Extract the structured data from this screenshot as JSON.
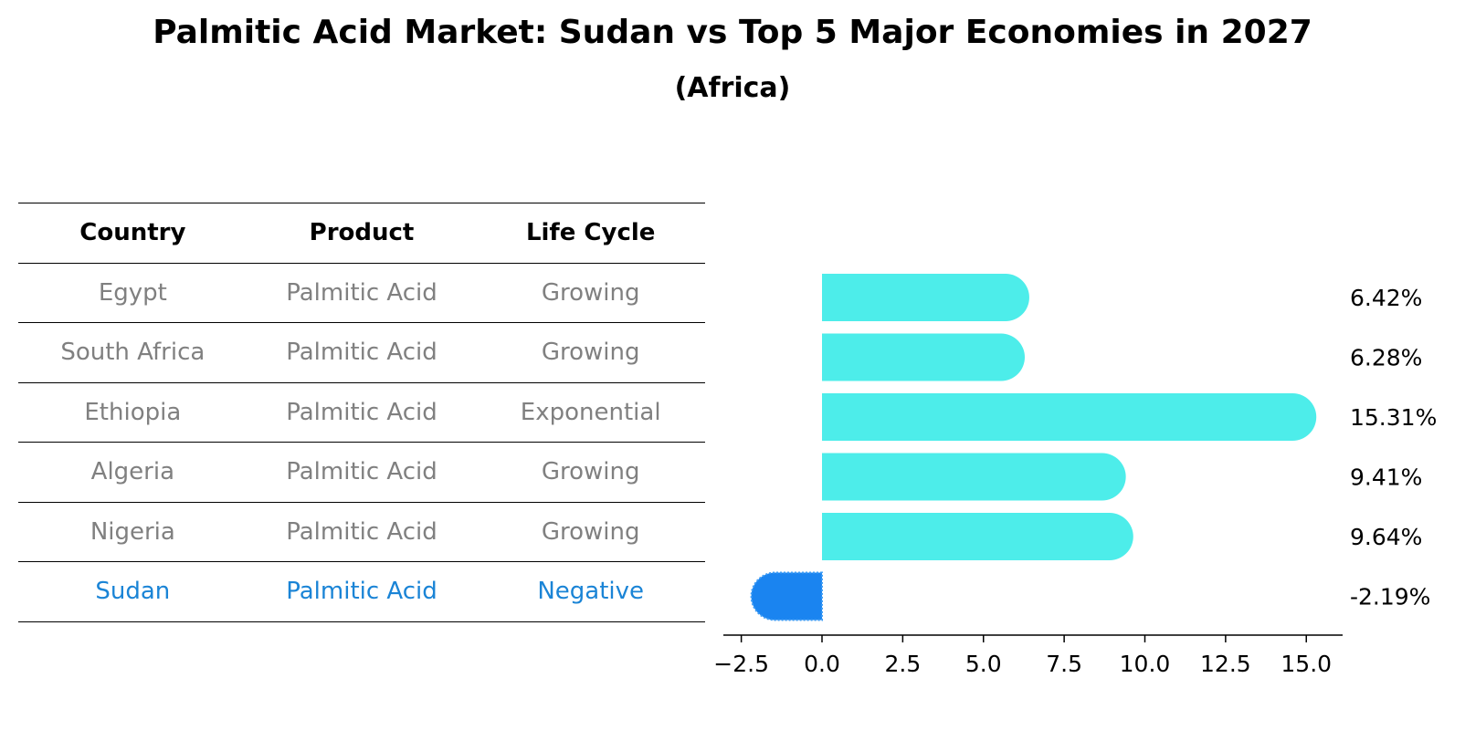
{
  "title": "Palmitic Acid Market: Sudan vs Top 5 Major Economies in 2027",
  "subtitle": "(Africa)",
  "table": {
    "headers": [
      "Country",
      "Product",
      "Life Cycle"
    ],
    "rows": [
      {
        "country": "Egypt",
        "product": "Palmitic Acid",
        "life_cycle": "Growing"
      },
      {
        "country": "South Africa",
        "product": "Palmitic Acid",
        "life_cycle": "Growing"
      },
      {
        "country": "Ethiopia",
        "product": "Palmitic Acid",
        "life_cycle": "Exponential"
      },
      {
        "country": "Algeria",
        "product": "Palmitic Acid",
        "life_cycle": "Growing"
      },
      {
        "country": "Nigeria",
        "product": "Palmitic Acid",
        "life_cycle": "Growing"
      },
      {
        "country": "Sudan",
        "product": "Palmitic Acid",
        "life_cycle": "Negative"
      }
    ]
  },
  "colors": {
    "positive_bar": "#4dedea",
    "negative_bar": "#1a84f0",
    "highlight_text": "#1a84d6",
    "muted_text": "#808080"
  },
  "chart_data": {
    "type": "bar",
    "orientation": "horizontal",
    "categories": [
      "Egypt",
      "South Africa",
      "Ethiopia",
      "Algeria",
      "Nigeria",
      "Sudan"
    ],
    "values": [
      6.42,
      6.28,
      15.31,
      9.41,
      9.64,
      -2.19
    ],
    "value_labels": [
      "6.42%",
      "6.28%",
      "15.31%",
      "9.41%",
      "9.64%",
      "-2.19%"
    ],
    "xlim": [
      -3.1,
      16.2
    ],
    "xticks": [
      -2.5,
      0.0,
      2.5,
      5.0,
      7.5,
      10.0,
      12.5,
      15.0
    ],
    "xtick_labels": [
      "−2.5",
      "0.0",
      "2.5",
      "5.0",
      "7.5",
      "10.0",
      "12.5",
      "15.0"
    ],
    "xlabel": "",
    "ylabel": "",
    "grid": false
  }
}
